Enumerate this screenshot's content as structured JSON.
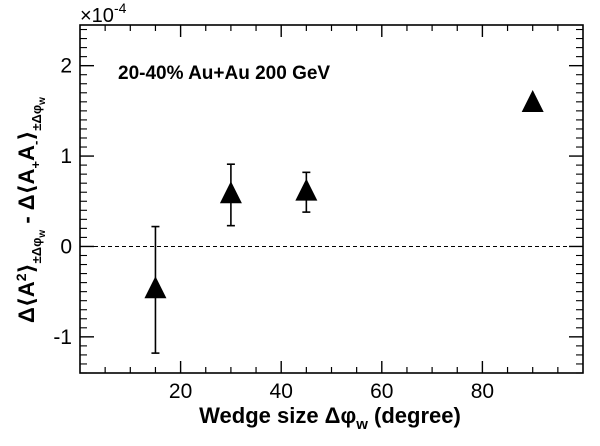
{
  "chart_data": {
    "type": "scatter",
    "annotation": "20-40% Au+Au 200 GeV",
    "xlabel": "Wedge size Δφw (degree)",
    "ylabel": "Δ⟨A²⟩±Δφw − Δ⟨A+A−⟩±Δφw",
    "y_scale_factor": "×10⁻⁴",
    "xlim": [
      0,
      100
    ],
    "ylim": [
      -1.4,
      2.45
    ],
    "x_ticks": [
      20,
      40,
      60,
      80
    ],
    "y_ticks": [
      -1,
      0,
      1,
      2
    ],
    "x_tick_labels": [
      "20",
      "40",
      "60",
      "80"
    ],
    "y_tick_labels": [
      "-1",
      "0",
      "1",
      "2"
    ],
    "reference_line_y": 0,
    "grid": false,
    "series": [
      {
        "marker": "filled-triangle",
        "color": "#000000",
        "points": [
          {
            "x": 15,
            "y": -0.48,
            "err": 0.7
          },
          {
            "x": 30,
            "y": 0.57,
            "err": 0.34
          },
          {
            "x": 45,
            "y": 0.6,
            "err": 0.22
          },
          {
            "x": 90,
            "y": 1.58,
            "err": 0
          }
        ]
      }
    ]
  }
}
